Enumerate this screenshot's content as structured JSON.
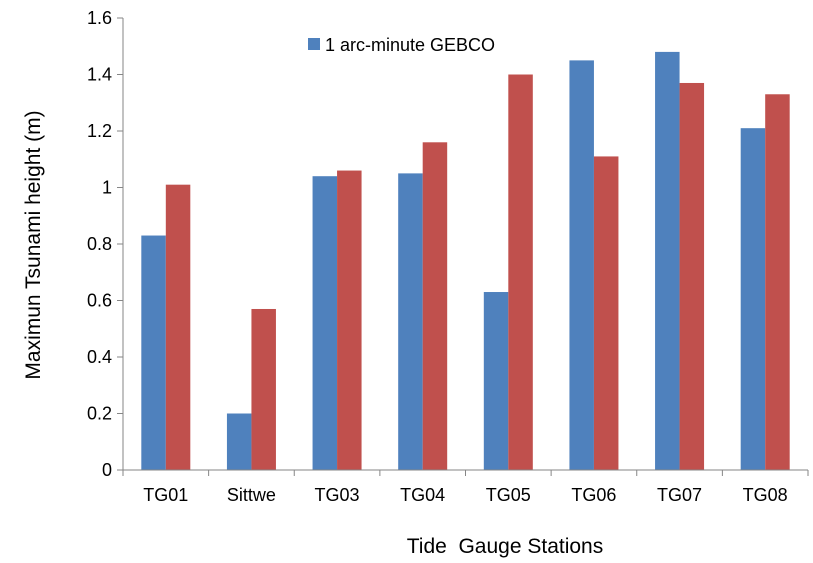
{
  "chart_data": {
    "type": "bar",
    "title": "",
    "xlabel": "Tide  Gauge Stations",
    "ylabel": "Maximun Tsunami height (m)",
    "ylim": [
      0,
      1.6
    ],
    "yticks": [
      "0",
      "0.2",
      "0.4",
      "0.6",
      "0.8",
      "1",
      "1.2",
      "1.4",
      "1.6"
    ],
    "grid": false,
    "legend_position": "top-center",
    "categories": [
      "TG01",
      "Sittwe",
      "TG03",
      "TG04",
      "TG05",
      "TG06",
      "TG07",
      "TG08"
    ],
    "series": [
      {
        "name": "1 arc-minute GEBCO",
        "color": "#4F81BD",
        "values": [
          0.83,
          0.2,
          1.04,
          1.05,
          0.63,
          1.45,
          1.48,
          1.21
        ]
      },
      {
        "color": "#C0504D",
        "values": [
          1.01,
          0.57,
          1.06,
          1.16,
          1.4,
          1.11,
          1.37,
          1.33
        ]
      }
    ]
  }
}
